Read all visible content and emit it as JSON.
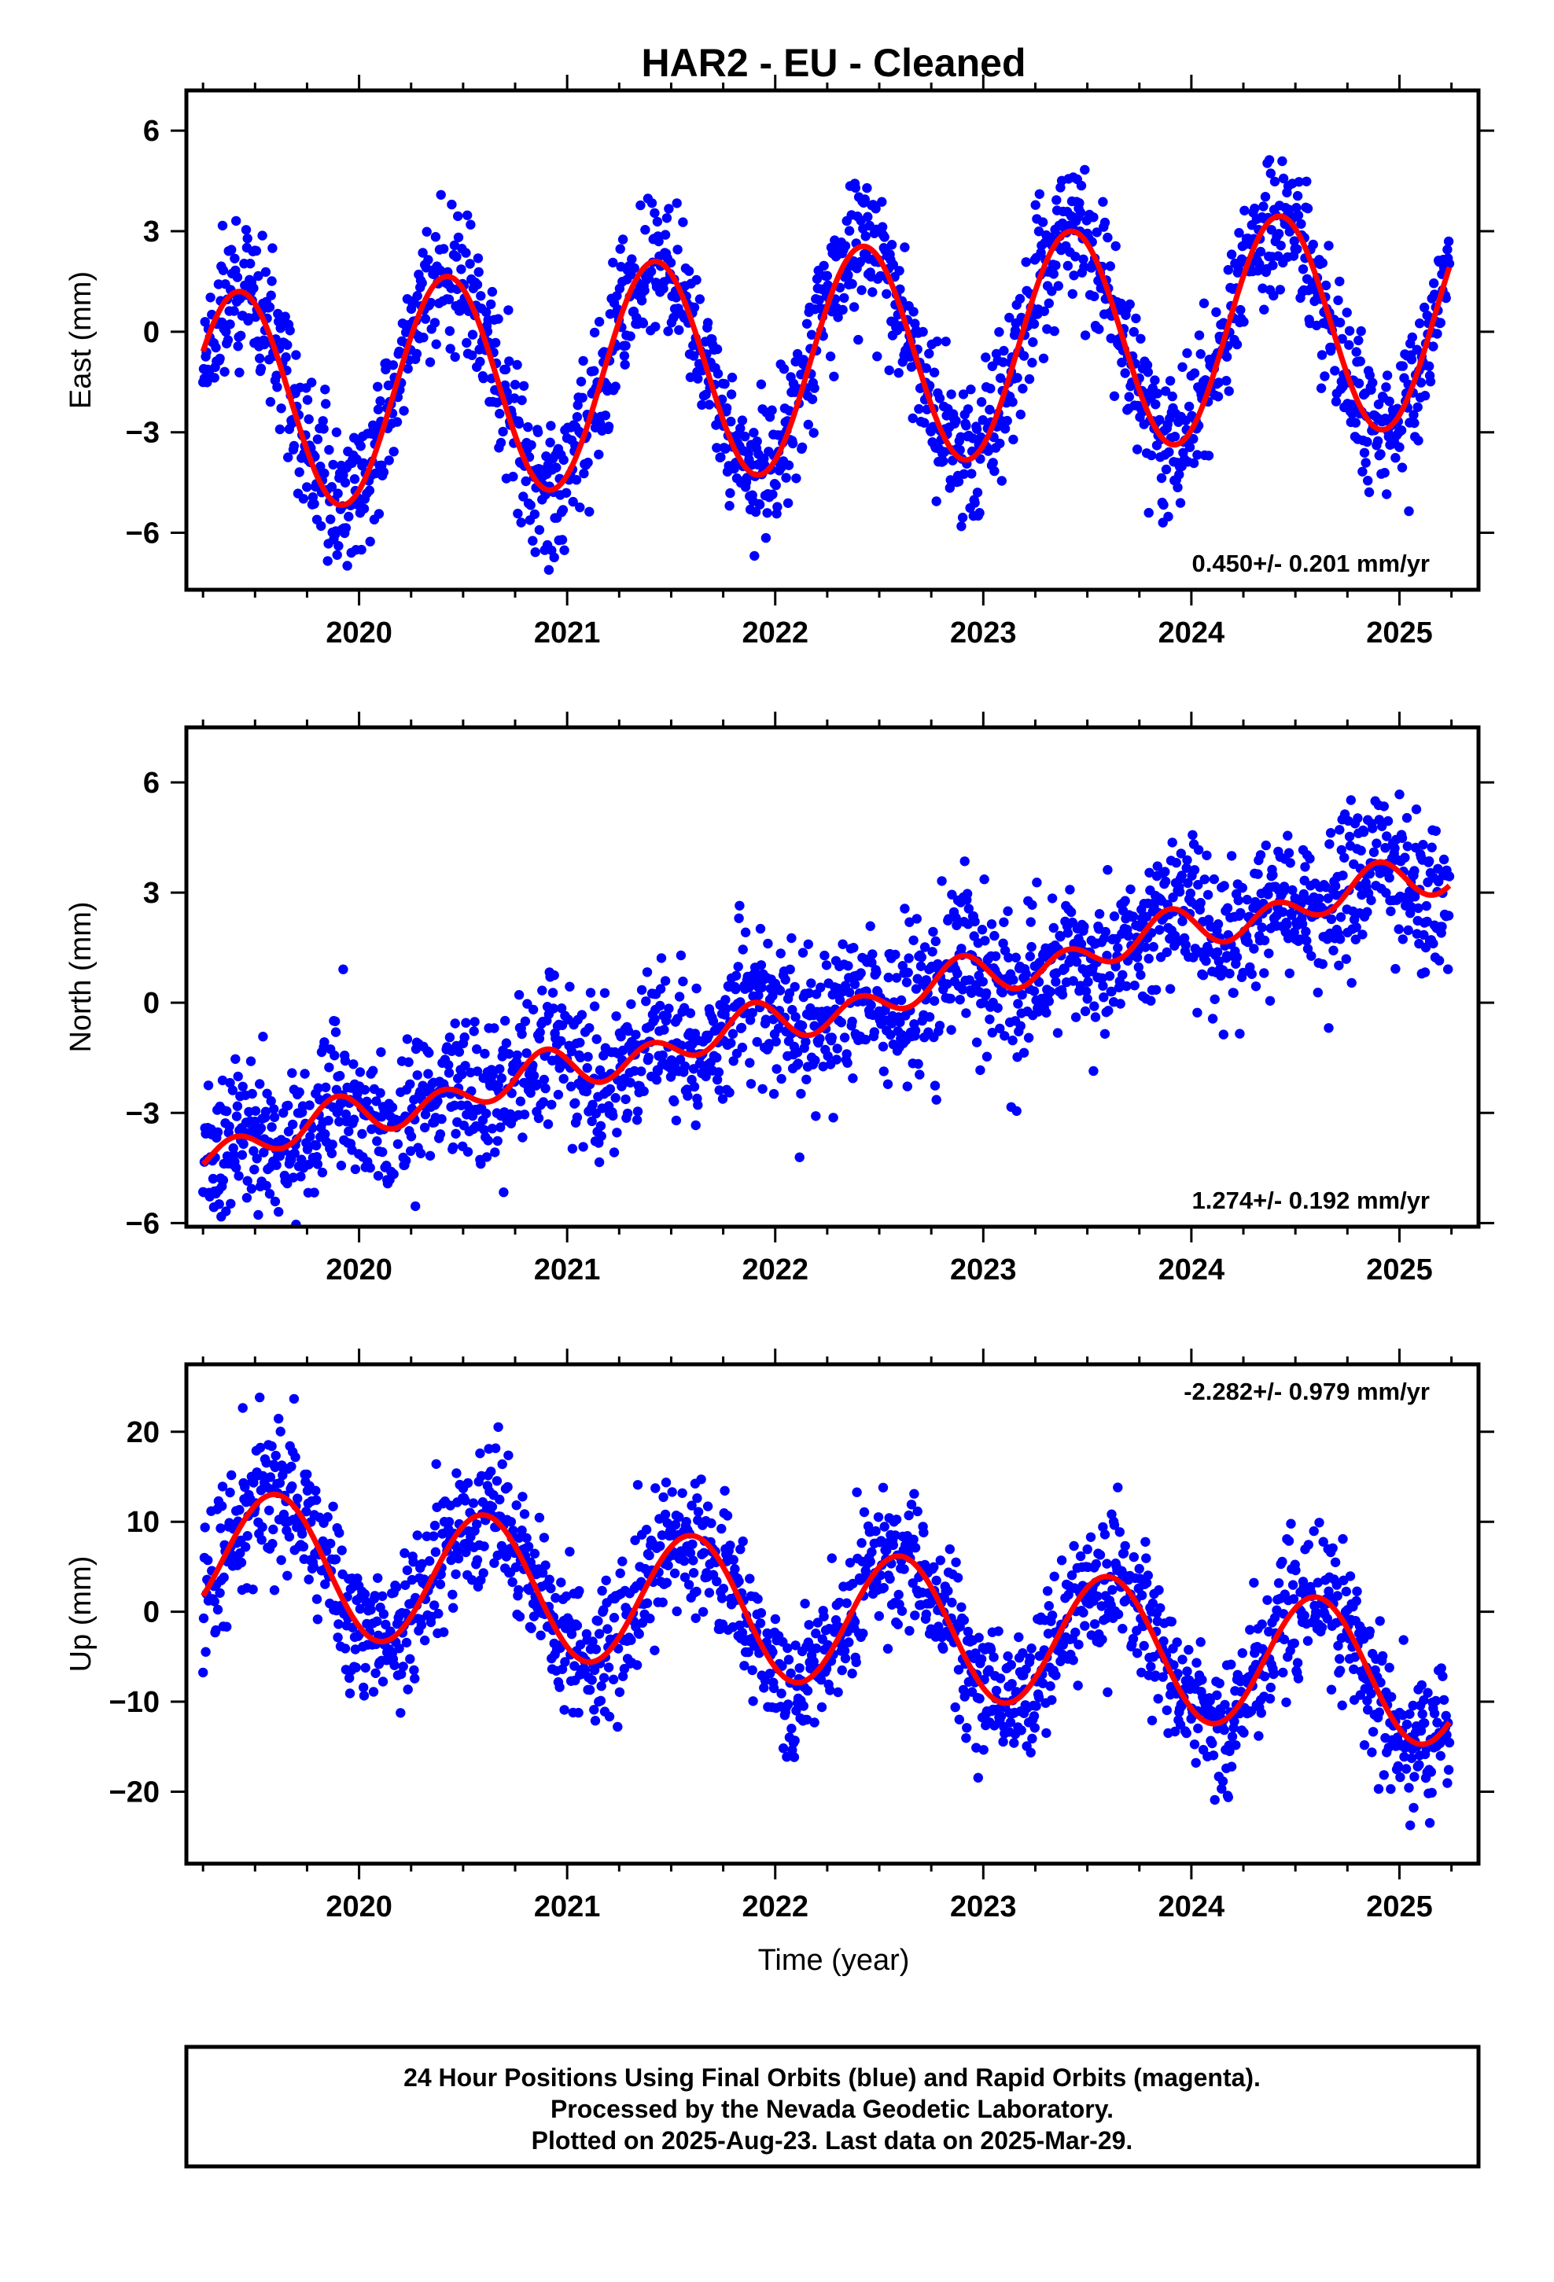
{
  "title": "HAR2  - EU - Cleaned",
  "xlabel": "Time (year)",
  "x_tick_labels": [
    "2020",
    "2021",
    "2022",
    "2023",
    "2024",
    "2025"
  ],
  "colors": {
    "points": "#0000ff",
    "fit": "#ff0000",
    "frame": "#000000"
  },
  "footer": {
    "line1": "24 Hour Positions Using Final Orbits (blue) and Rapid Orbits (magenta).",
    "line2": "Processed by the Nevada Geodetic Laboratory.",
    "line3": "Plotted on 2025-Aug-23. Last data on 2025-Mar-29."
  },
  "chart_data": [
    {
      "type": "scatter",
      "panel": "east",
      "ylabel": "East (mm)",
      "rate_text": "0.450+/- 0.201 mm/yr",
      "rate_position": "bottom-right",
      "xlim": [
        2019.17,
        2025.38
      ],
      "ylim": [
        -7.7,
        7.2
      ],
      "yticks": [
        6,
        3,
        0,
        -3,
        -6
      ],
      "ytick_labels": [
        "6",
        "3",
        "0",
        "−3",
        "−6"
      ],
      "x_range_data": [
        2019.25,
        2025.24
      ],
      "fit": {
        "offset": -0.85,
        "rate": 0.45,
        "t0": 2022.2,
        "annual_amp": 3.3,
        "annual_peak_year_fraction": 0.42,
        "semiannual_amp": 0.0,
        "semiannual_peak_year_fraction": 0.0
      },
      "scatter_sigma": 1.05,
      "n_points": 1850,
      "fit_line_peaks": [
        [
          2019.42,
          1.8
        ],
        [
          2020.43,
          2.2
        ],
        [
          2021.43,
          2.7
        ],
        [
          2022.43,
          3.1
        ],
        [
          2023.42,
          3.6
        ],
        [
          2024.42,
          4.0
        ]
      ],
      "fit_line_troughs": [
        [
          2019.92,
          -4.1
        ],
        [
          2020.92,
          -3.6
        ],
        [
          2021.92,
          -3.2
        ],
        [
          2022.92,
          -2.8
        ],
        [
          2023.92,
          -2.3
        ],
        [
          2024.92,
          -1.8
        ]
      ]
    },
    {
      "type": "scatter",
      "panel": "north",
      "ylabel": "North (mm)",
      "rate_text": "1.274+/- 0.192 mm/yr",
      "rate_position": "bottom-right",
      "xlim": [
        2019.17,
        2025.38
      ],
      "ylim": [
        -6.1,
        7.5
      ],
      "yticks": [
        6,
        3,
        0,
        -3,
        -6
      ],
      "ytick_labels": [
        "6",
        "3",
        "0",
        "−3",
        "−6"
      ],
      "x_range_data": [
        2019.25,
        2025.24
      ],
      "fit": {
        "offset": -0.3,
        "rate": 1.274,
        "t0": 2022.2,
        "annual_amp": 0.25,
        "annual_peak_year_fraction": 0.85,
        "semiannual_amp": 0.45,
        "semiannual_peak_year_fraction": 0.4
      },
      "scatter_sigma": 1.0,
      "n_points": 1850,
      "fit_line_samples": [
        [
          2019.25,
          -4.1
        ],
        [
          2019.6,
          -2.9
        ],
        [
          2020.0,
          -2.6
        ],
        [
          2020.2,
          -3.3
        ],
        [
          2020.5,
          -1.5
        ],
        [
          2021.15,
          -2.0
        ],
        [
          2021.5,
          -0.3
        ],
        [
          2022.15,
          -0.7
        ],
        [
          2022.6,
          0.9
        ],
        [
          2023.0,
          1.3
        ],
        [
          2023.2,
          0.5
        ],
        [
          2023.5,
          2.2
        ],
        [
          2024.15,
          1.8
        ],
        [
          2024.5,
          3.6
        ],
        [
          2024.9,
          3.9
        ],
        [
          2025.24,
          3.2
        ]
      ]
    },
    {
      "type": "scatter",
      "panel": "up",
      "ylabel": "Up (mm)",
      "rate_text": "-2.282+/- 0.979 mm/yr",
      "rate_position": "top-right",
      "xlim": [
        2019.17,
        2025.38
      ],
      "ylim": [
        -28,
        27.5
      ],
      "yticks": [
        20,
        10,
        0,
        -10,
        -20
      ],
      "ytick_labels": [
        "20",
        "10",
        "0",
        "−10",
        "−20"
      ],
      "x_range_data": [
        2019.25,
        2025.24
      ],
      "fit": {
        "offset": -0.5,
        "rate": -2.282,
        "t0": 2022.2,
        "annual_amp": 7.6,
        "annual_peak_year_fraction": 0.6,
        "semiannual_amp": 0.0,
        "semiannual_peak_year_fraction": 0.0
      },
      "scatter_sigma": 4.0,
      "n_points": 1850,
      "fit_line_peaks": [
        [
          2019.6,
          12.8
        ],
        [
          2020.6,
          10.5
        ],
        [
          2021.6,
          8.2
        ],
        [
          2022.6,
          6.0
        ],
        [
          2023.6,
          3.7
        ],
        [
          2024.6,
          1.4
        ]
      ],
      "fit_line_troughs": [
        [
          2020.1,
          -1.2
        ],
        [
          2021.1,
          -3.5
        ],
        [
          2022.1,
          -5.8
        ],
        [
          2023.1,
          -8.1
        ],
        [
          2024.1,
          -10.3
        ],
        [
          2025.1,
          -12.3
        ]
      ]
    }
  ]
}
